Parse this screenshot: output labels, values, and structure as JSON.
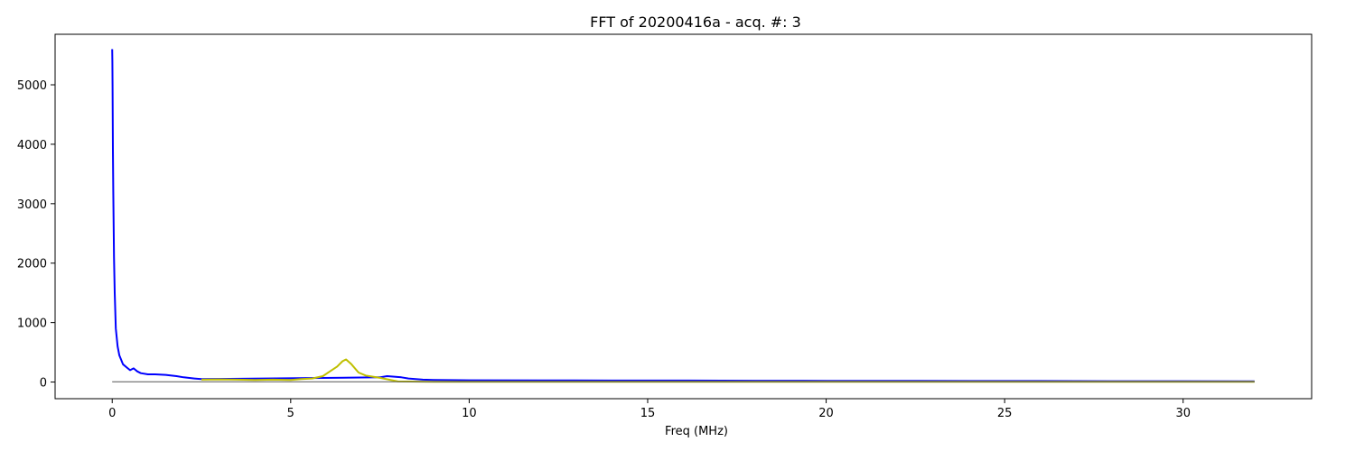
{
  "chart_data": {
    "type": "line",
    "title": "FFT of 20200416a - acq. #: 3",
    "xlabel": "Freq (MHz)",
    "ylabel": "",
    "xlim": [
      -1.6,
      33.6
    ],
    "ylim": [
      -280,
      5850
    ],
    "xticks": [
      0,
      5,
      10,
      15,
      20,
      25,
      30
    ],
    "yticks": [
      0,
      1000,
      2000,
      3000,
      4000,
      5000
    ],
    "grid": false,
    "legend": "none",
    "series": [
      {
        "color": "#0000ff",
        "x": [
          0,
          0.005,
          0.01,
          0.02,
          0.03,
          0.05,
          0.07,
          0.1,
          0.15,
          0.2,
          0.3,
          0.4,
          0.5,
          0.6,
          0.7,
          0.8,
          1.0,
          1.2,
          1.5,
          1.8,
          2.0,
          2.3,
          2.5,
          7.5,
          7.7,
          7.9,
          8.1,
          8.3,
          8.5,
          8.7,
          9.0,
          10,
          12,
          14,
          16,
          18,
          20,
          22,
          24,
          26,
          28,
          30,
          32
        ],
        "y": [
          5600,
          5400,
          5000,
          3900,
          3200,
          2100,
          1500,
          900,
          600,
          450,
          300,
          250,
          200,
          230,
          180,
          150,
          130,
          130,
          120,
          100,
          80,
          60,
          50,
          80,
          100,
          90,
          80,
          60,
          50,
          40,
          35,
          30,
          28,
          25,
          25,
          22,
          20,
          20,
          18,
          17,
          15,
          14,
          12
        ]
      },
      {
        "color": "#bfbf00",
        "x": [
          2.5,
          3.0,
          3.5,
          4.0,
          4.5,
          5.0,
          5.3,
          5.6,
          5.9,
          6.1,
          6.3,
          6.45,
          6.55,
          6.7,
          6.9,
          7.1,
          7.3,
          7.5,
          8,
          9,
          10,
          12,
          15,
          18,
          20,
          25,
          30,
          32
        ],
        "y": [
          40,
          45,
          40,
          35,
          40,
          35,
          50,
          60,
          100,
          180,
          260,
          350,
          380,
          300,
          160,
          110,
          90,
          70,
          10,
          5,
          5,
          5,
          5,
          5,
          5,
          5,
          5,
          5
        ]
      },
      {
        "color": "#555555",
        "x": [
          0,
          5,
          10,
          15,
          20,
          25,
          30,
          32
        ],
        "y": [
          5,
          5,
          5,
          5,
          5,
          5,
          5,
          5
        ]
      }
    ]
  }
}
